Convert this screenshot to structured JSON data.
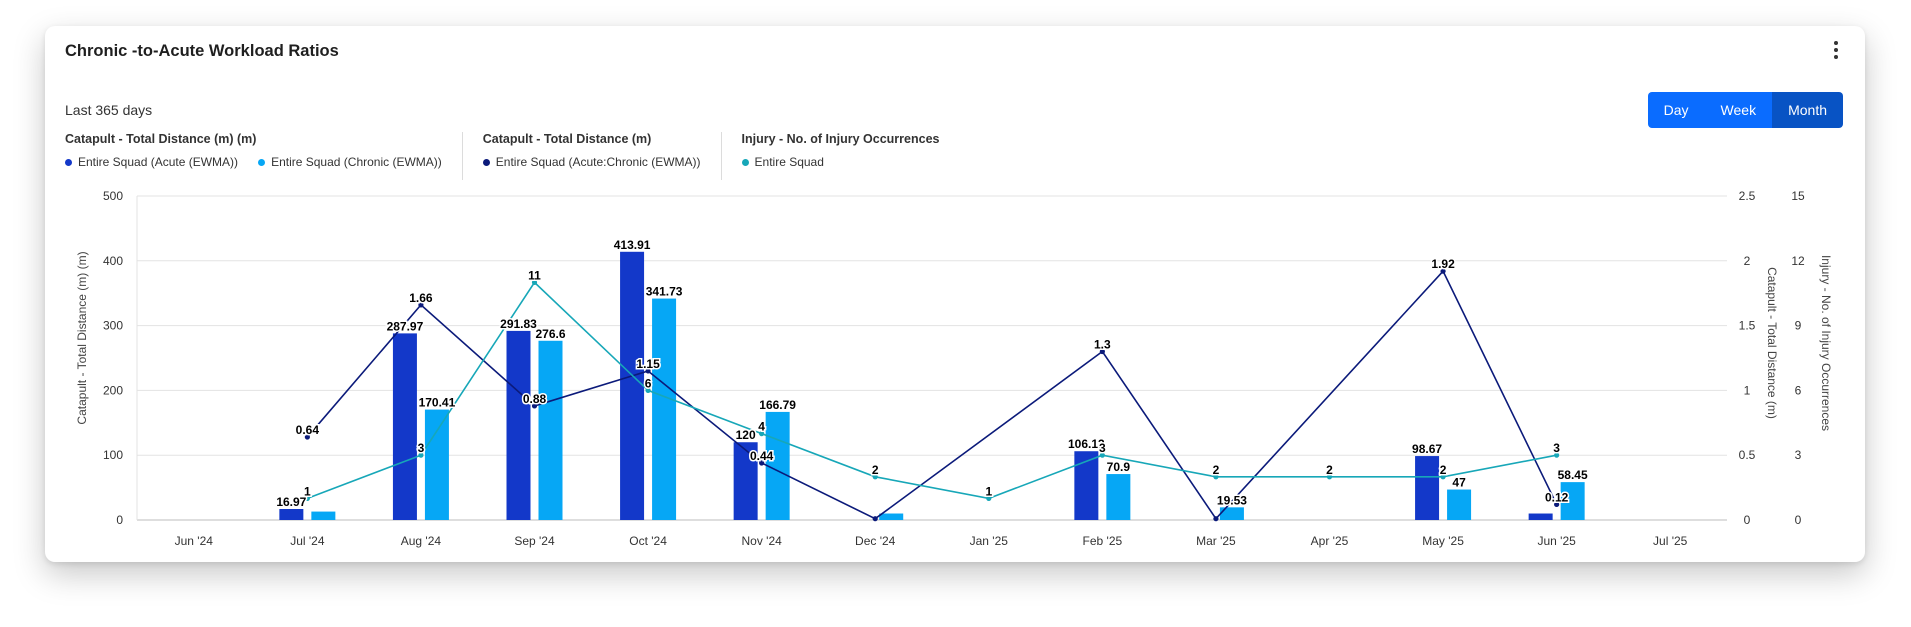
{
  "card": {
    "title": "Chronic -to-Acute Workload Ratios",
    "range_label": "Last 365 days",
    "period_buttons": [
      "Day",
      "Week",
      "Month"
    ],
    "active_period": "Month"
  },
  "legend": [
    {
      "title": "Catapult - Total Distance (m) (m)",
      "items": [
        {
          "label": "Entire Squad (Acute (EWMA))",
          "color": "#1338c9"
        },
        {
          "label": "Entire Squad (Chronic (EWMA))",
          "color": "#06a7f5"
        }
      ]
    },
    {
      "title": "Catapult - Total Distance (m)",
      "items": [
        {
          "label": "Entire Squad (Acute:Chronic (EWMA))",
          "color": "#0b1a7a"
        }
      ]
    },
    {
      "title": "Injury - No. of Injury Occurrences",
      "items": [
        {
          "label": "Entire Squad",
          "color": "#17a7b8"
        }
      ]
    }
  ],
  "chart_data": {
    "type": "bar",
    "categories": [
      "Jun '24",
      "Jul '24",
      "Aug '24",
      "Sep '24",
      "Oct '24",
      "Nov '24",
      "Dec '24",
      "Jan '25",
      "Feb '25",
      "Mar '25",
      "Apr '25",
      "May '25",
      "Jun '25",
      "Jul '25"
    ],
    "y_left": {
      "label": "Catapult - Total Distance (m) (m)",
      "ticks": [
        0,
        100,
        200,
        300,
        400,
        500
      ],
      "range": [
        0,
        500
      ]
    },
    "y_right1": {
      "label": "Catapult - Total Distance (m)",
      "ticks": [
        "0",
        "0.5",
        "1",
        "1.5",
        "2",
        "2.5"
      ],
      "range": [
        0,
        2.5
      ]
    },
    "y_right2": {
      "label": "Injury - No. of Injury Occurrences",
      "ticks": [
        0,
        3,
        6,
        9,
        12,
        15
      ],
      "range": [
        0,
        15
      ]
    },
    "series": [
      {
        "name": "Entire Squad (Acute (EWMA))",
        "type": "bar",
        "axis": "left",
        "color": "#1338c9",
        "values": [
          null,
          16.97,
          287.97,
          291.83,
          413.91,
          120,
          null,
          null,
          106.13,
          null,
          null,
          98.67,
          10,
          null
        ],
        "labels": [
          null,
          "16.97",
          "287.97",
          "291.83",
          "413.91",
          "120",
          null,
          null,
          "106.13",
          null,
          null,
          "98.67",
          null,
          null
        ]
      },
      {
        "name": "Entire Squad (Chronic (EWMA))",
        "type": "bar",
        "axis": "left",
        "color": "#06a7f5",
        "values": [
          null,
          13,
          170.41,
          276.6,
          341.73,
          166.79,
          10,
          null,
          70.9,
          19.53,
          null,
          47,
          58.45,
          null
        ],
        "labels": [
          null,
          null,
          "170.41",
          "276.6",
          "341.73",
          "166.79",
          null,
          null,
          "70.9",
          "19.53",
          null,
          "47",
          "58.45",
          null
        ]
      },
      {
        "name": "Entire Squad (Acute:Chronic (EWMA))",
        "type": "line",
        "axis": "right1",
        "color": "#0b1a7a",
        "values": [
          null,
          0.64,
          1.66,
          0.88,
          1.15,
          0.44,
          0.01,
          null,
          1.3,
          0.01,
          null,
          1.92,
          0.12,
          null
        ],
        "labels": [
          null,
          "0.64",
          "1.66",
          "0.88",
          "1.15",
          "0.44",
          null,
          null,
          "1.3",
          null,
          null,
          "1.92",
          "0.12",
          null
        ]
      },
      {
        "name": "Entire Squad",
        "type": "line",
        "axis": "right2",
        "color": "#17a7b8",
        "values": [
          null,
          1,
          3,
          11,
          6,
          4,
          2,
          1,
          3,
          2,
          2,
          2,
          3,
          null
        ],
        "labels": [
          null,
          "1",
          "3",
          "11",
          "6",
          "4",
          "2",
          "1",
          "3",
          "2",
          "2",
          "2",
          "3",
          null
        ]
      }
    ]
  }
}
